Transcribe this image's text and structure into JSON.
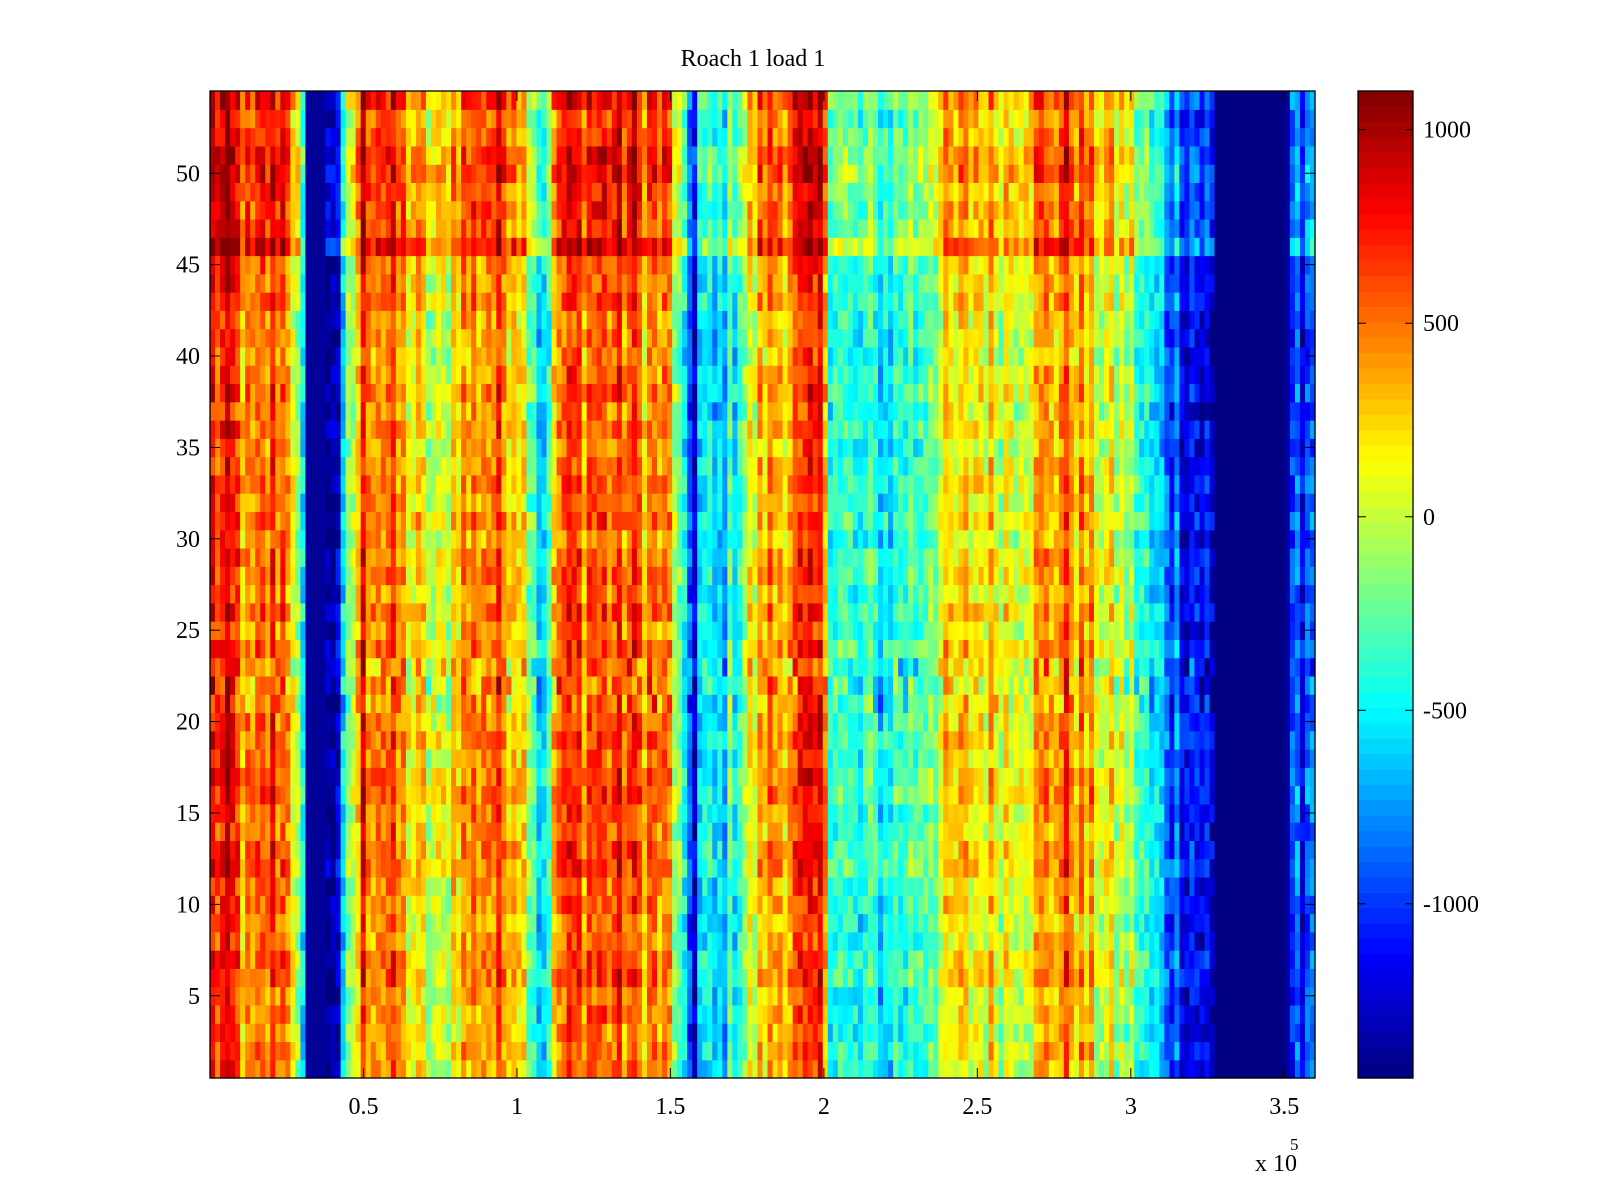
{
  "chart_data": {
    "type": "heatmap",
    "title": "Roach 1 load 1",
    "xlabel": "",
    "ylabel": "",
    "x_multiplier_label": "x 10",
    "x_multiplier_exponent": "5",
    "xlim": [
      0,
      3.6
    ],
    "ylim": [
      0.5,
      54.5
    ],
    "x_ticks": [
      0.5,
      1,
      1.5,
      2,
      2.5,
      3,
      3.5
    ],
    "x_tick_labels": [
      "0.5",
      "1",
      "1.5",
      "2",
      "2.5",
      "3",
      "3.5"
    ],
    "y_ticks": [
      5,
      10,
      15,
      20,
      25,
      30,
      35,
      40,
      45,
      50
    ],
    "y_tick_labels": [
      "5",
      "10",
      "15",
      "20",
      "25",
      "30",
      "35",
      "40",
      "45",
      "50"
    ],
    "rows": 54,
    "colormap": "jet",
    "clim": [
      -1450,
      1100
    ],
    "colorbar": {
      "ticks": [
        1000,
        500,
        0,
        -500,
        -1000
      ],
      "tick_labels": [
        "1000",
        "500",
        "0",
        "-500",
        "-1000"
      ]
    },
    "column_profile": {
      "x": [
        0.0,
        0.08,
        0.13,
        0.2,
        0.26,
        0.3,
        0.32,
        0.36,
        0.42,
        0.45,
        0.5,
        0.6,
        0.66,
        0.75,
        0.8,
        0.9,
        1.0,
        1.06,
        1.08,
        1.1,
        1.14,
        1.25,
        1.35,
        1.45,
        1.5,
        1.55,
        1.58,
        1.6,
        1.65,
        1.7,
        1.8,
        1.9,
        2.0,
        2.02,
        2.1,
        2.2,
        2.3,
        2.4,
        2.5,
        2.6,
        2.7,
        2.8,
        2.9,
        3.0,
        3.05,
        3.15,
        3.25,
        3.28,
        3.3,
        3.5,
        3.55,
        3.6
      ],
      "values": [
        700,
        650,
        250,
        600,
        550,
        -600,
        -1400,
        -1400,
        -1200,
        -300,
        650,
        450,
        200,
        -100,
        350,
        500,
        450,
        -200,
        -700,
        -300,
        550,
        600,
        550,
        450,
        350,
        -800,
        -1100,
        -500,
        -700,
        -400,
        300,
        500,
        650,
        -200,
        -500,
        -450,
        -300,
        100,
        200,
        150,
        300,
        500,
        100,
        -100,
        -500,
        -900,
        -1200,
        -1450,
        -1450,
        -1450,
        -1000,
        -700
      ]
    },
    "bands": [
      {
        "rows": [
          46,
          46
        ],
        "note": "high-value stripe"
      },
      {
        "rows": [
          47,
          54
        ],
        "note": "high-contrast top region"
      },
      {
        "rows": [
          21,
          23
        ],
        "note": "noisy band"
      }
    ]
  }
}
